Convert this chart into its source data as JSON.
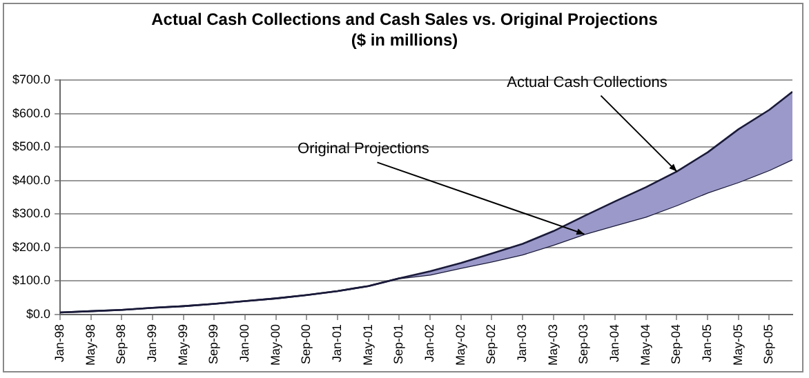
{
  "chart_data": {
    "type": "area",
    "title": "Actual Cash Collections and Cash Sales vs. Original Projections",
    "subtitle": "($ in millions)",
    "x": [
      "1998-01",
      "1998-05",
      "1998-09",
      "1999-01",
      "1999-05",
      "1999-09",
      "2000-01",
      "2000-05",
      "2000-09",
      "2001-01",
      "2001-05",
      "2001-09",
      "2002-01",
      "2002-05",
      "2002-09",
      "2003-01",
      "2003-05",
      "2003-09",
      "2004-01",
      "2004-05",
      "2004-09",
      "2005-01",
      "2005-05",
      "2005-09",
      "2005-12"
    ],
    "series": [
      {
        "color": "#9b99c9",
        "values": [
          6,
          10,
          14,
          20,
          25,
          32,
          40,
          48,
          58,
          70,
          85,
          108,
          129,
          154,
          182,
          211,
          249,
          294,
          338,
          380,
          427,
          484,
          553,
          611,
          665
        ]
      },
      {
        "type": "line",
        "color": "#1a1a3a",
        "values": [
          6,
          10,
          14,
          20,
          25,
          32,
          40,
          48,
          58,
          70,
          85,
          108,
          119,
          139,
          158,
          179,
          208,
          240,
          266,
          292,
          326,
          364,
          395,
          431,
          463
        ]
      }
    ],
    "xlim": [
      "1998-01",
      "2005-12"
    ],
    "xticks": [
      {
        "value": "1998-01",
        "label": "Jan-98"
      },
      {
        "value": "1998-05",
        "label": "May-98"
      },
      {
        "value": "1998-09",
        "label": "Sep-98"
      },
      {
        "value": "1999-01",
        "label": "Jan-99"
      },
      {
        "value": "1999-05",
        "label": "May-99"
      },
      {
        "value": "1999-09",
        "label": "Sep-99"
      },
      {
        "value": "2000-01",
        "label": "Jan-00"
      },
      {
        "value": "2000-05",
        "label": "May-00"
      },
      {
        "value": "2000-09",
        "label": "Sep-00"
      },
      {
        "value": "2001-01",
        "label": "Jan-01"
      },
      {
        "value": "2001-05",
        "label": "May-01"
      },
      {
        "value": "2001-09",
        "label": "Sep-01"
      },
      {
        "value": "2002-01",
        "label": "Jan-02"
      },
      {
        "value": "2002-05",
        "label": "May-02"
      },
      {
        "value": "2002-09",
        "label": "Sep-02"
      },
      {
        "value": "2003-01",
        "label": "Jan-03"
      },
      {
        "value": "2003-05",
        "label": "May-03"
      },
      {
        "value": "2003-09",
        "label": "Sep-03"
      },
      {
        "value": "2004-01",
        "label": "Jan-04"
      },
      {
        "value": "2004-05",
        "label": "May-04"
      },
      {
        "value": "2004-09",
        "label": "Sep-04"
      },
      {
        "value": "2005-01",
        "label": "Jan-05"
      },
      {
        "value": "2005-05",
        "label": "May-05"
      },
      {
        "value": "2005-09",
        "label": "Sep-05"
      }
    ],
    "ylim": [
      0,
      700
    ],
    "yticks": [
      {
        "value": 0,
        "label": "$0.0"
      },
      {
        "value": 100,
        "label": "$100.0"
      },
      {
        "value": 200,
        "label": "$200.0"
      },
      {
        "value": 300,
        "label": "$300.0"
      },
      {
        "value": 400,
        "label": "$400.0"
      },
      {
        "value": 500,
        "label": "$500.0"
      },
      {
        "value": 600,
        "label": "$600.0"
      },
      {
        "value": 700,
        "label": "$700.0"
      }
    ],
    "annotations": [
      {
        "text": "Actual Cash Collections",
        "x": "2004-09",
        "y": 427
      },
      {
        "text": "Original Projections",
        "x": "2003-09",
        "y": 240
      }
    ],
    "grid": "y",
    "legend": false,
    "marker": "none",
    "line_style": "solid"
  }
}
